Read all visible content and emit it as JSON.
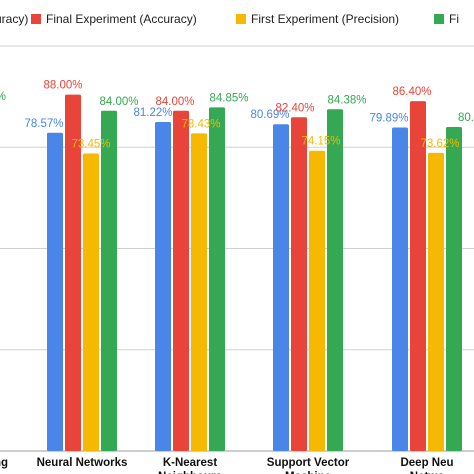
{
  "chart_data": {
    "type": "bar",
    "legend": {
      "placement": "top",
      "items": [
        {
          "label": "uracy)",
          "color": null
        },
        {
          "label": "Final Experiment (Accuracy)",
          "color": "#e8443a"
        },
        {
          "label": "First Experiment (Precision)",
          "color": "#f6b800"
        },
        {
          "label": "Fi",
          "color": "#34a853"
        }
      ]
    },
    "categories": [
      {
        "lines": [
          "ng"
        ]
      },
      {
        "lines": [
          "Neural Networks"
        ]
      },
      {
        "lines": [
          "K-Nearest",
          "Neighbours"
        ]
      },
      {
        "lines": [
          "Support Vector",
          "Machine"
        ]
      },
      {
        "lines": [
          "Deep Neu",
          "Netwo"
        ]
      }
    ],
    "series": [
      {
        "color": "#4a86e8",
        "label_color": "#4a86e8",
        "values": [
          null,
          78.57,
          81.22,
          80.69,
          79.89
        ],
        "labels": [
          "",
          "78.57%",
          "81.22%",
          "80.69%",
          "79.89%"
        ]
      },
      {
        "color": "#e8443a",
        "label_color": "#e8443a",
        "values": [
          null,
          88.0,
          84.0,
          82.4,
          86.4
        ],
        "labels": [
          "",
          "88.00%",
          "84.00%",
          "82.40%",
          "86.40%"
        ]
      },
      {
        "color": "#f6b800",
        "label_color": "#f6b800",
        "values": [
          null,
          73.45,
          78.43,
          74.15,
          73.62
        ],
        "labels": [
          "",
          "73.45%",
          "78.43%",
          "74.15%",
          "73.62%"
        ]
      },
      {
        "color": "#34a853",
        "label_color": "#34a853",
        "values": [
          null,
          84.0,
          84.85,
          84.38,
          80.0
        ],
        "labels": [
          "%",
          "84.00%",
          "84.85%",
          "84.38%",
          "80."
        ]
      }
    ],
    "ylim": [
      0,
      100
    ],
    "grid": true
  }
}
